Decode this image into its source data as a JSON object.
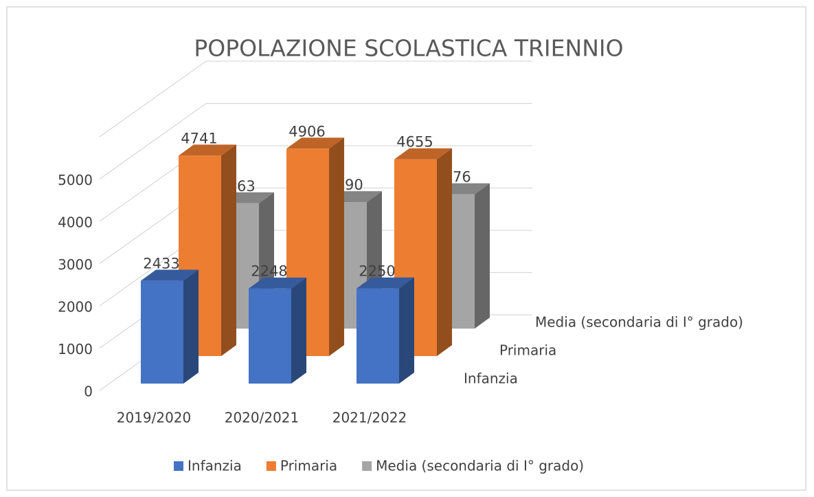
{
  "chart_data": {
    "type": "bar",
    "title": "POPOLAZIONE SCOLASTICA TRIENNIO",
    "categories": [
      "2019/2020",
      "2020/2021",
      "2021/2022"
    ],
    "series": [
      {
        "name": "Infanzia",
        "color": "#4472c4",
        "values": [
          2433,
          2248,
          2250
        ]
      },
      {
        "name": "Primaria",
        "color": "#ed7d31",
        "values": [
          4741,
          4906,
          4655
        ]
      },
      {
        "name": "Media (secondaria di I° grado)",
        "color": "#a5a5a5",
        "values": [
          2963,
          2990,
          3176
        ]
      }
    ],
    "ylim": [
      0,
      6000
    ],
    "yticks": [
      0,
      1000,
      2000,
      3000,
      4000,
      5000
    ],
    "grid": true,
    "legend": "bottom"
  }
}
